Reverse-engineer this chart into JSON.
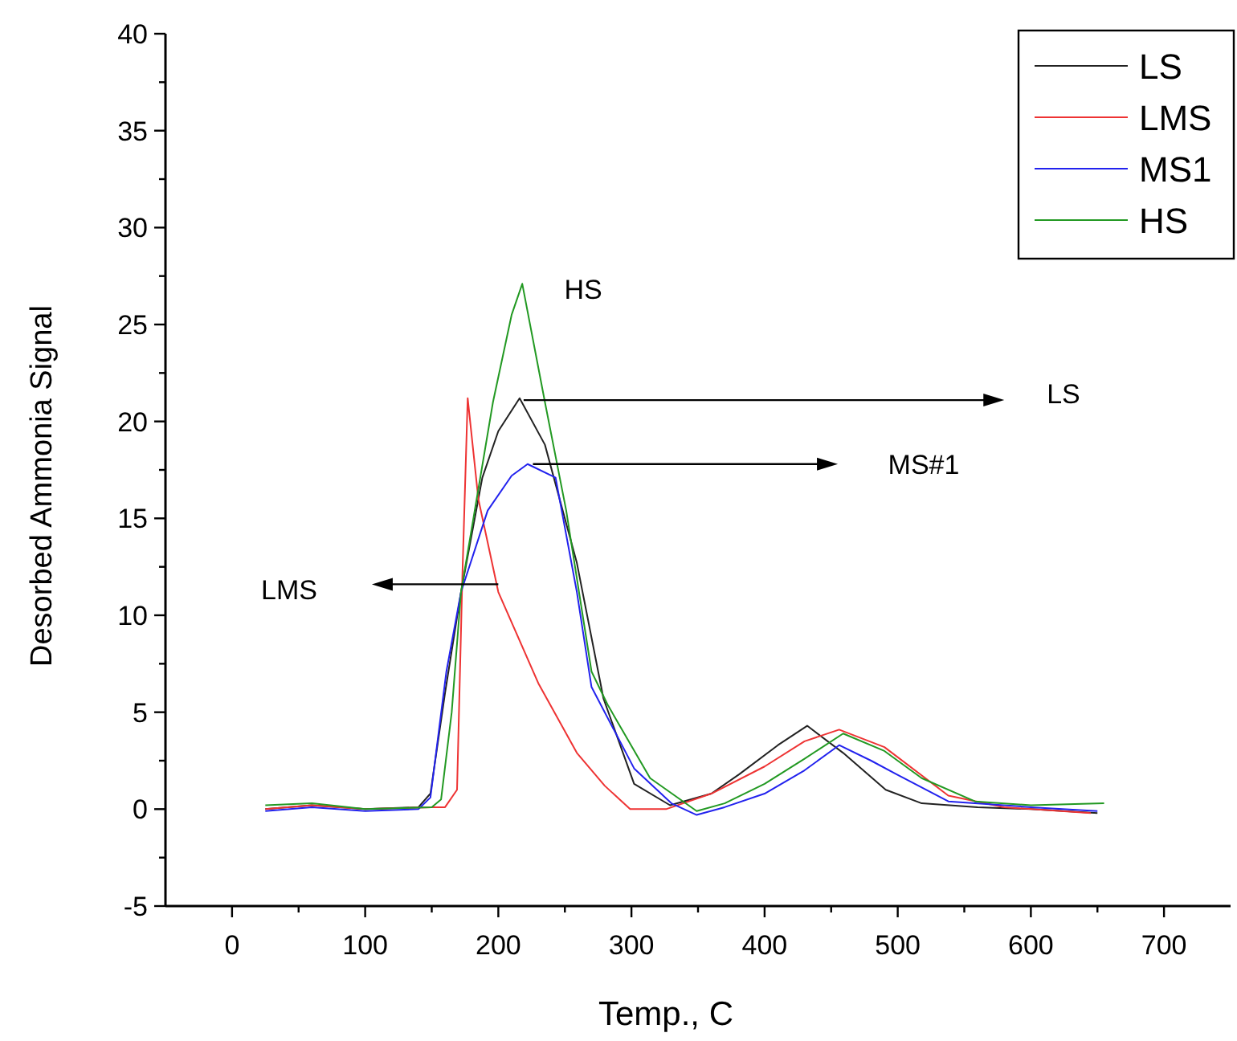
{
  "chart_data": {
    "type": "line",
    "xlabel": "Temp., C",
    "ylabel": "Desorbed Ammonia Signal",
    "xlim": [
      -50,
      750
    ],
    "ylim": [
      -5,
      40
    ],
    "xticks": [
      0,
      {
        "value": 50,
        "label": null
      },
      100,
      {
        "value": 150,
        "label": null
      },
      200,
      {
        "value": 250,
        "label": null
      },
      300,
      {
        "value": 350,
        "label": null
      },
      400,
      {
        "value": 450,
        "label": null
      },
      500,
      {
        "value": 550,
        "label": null
      },
      600,
      {
        "value": 650,
        "label": null
      },
      700
    ],
    "yticks": [
      -5,
      {
        "value": -2.5,
        "label": null
      },
      0,
      {
        "value": 2.5,
        "label": null
      },
      5,
      {
        "value": 7.5,
        "label": null
      },
      10,
      {
        "value": 12.5,
        "label": null
      },
      15,
      {
        "value": 17.5,
        "label": null
      },
      20,
      {
        "value": 22.5,
        "label": null
      },
      25,
      {
        "value": 27.5,
        "label": null
      },
      30,
      {
        "value": 32.5,
        "label": null
      },
      35,
      {
        "value": 37.5,
        "label": null
      },
      40
    ],
    "legend": "top right",
    "grid": false,
    "marker": "none",
    "line_style": "solid",
    "series": [
      {
        "name": "LS",
        "color": "#222222",
        "x": [
          25,
          60,
          100,
          140,
          149,
          160,
          172,
          188,
          200,
          216,
          235,
          259,
          279,
          302,
          329,
          360,
          381,
          410,
          432,
          459,
          491,
          518,
          560,
          600,
          650
        ],
        "values": [
          0,
          0.2,
          0,
          0.1,
          0.8,
          6,
          11.2,
          17.1,
          19.5,
          21.2,
          18.8,
          12.7,
          5.7,
          1.3,
          0.2,
          0.8,
          1.8,
          3.3,
          4.3,
          2.9,
          1.0,
          0.3,
          0.1,
          0,
          -0.2
        ]
      },
      {
        "name": "LMS",
        "color": "#ee3333",
        "x": [
          25,
          60,
          100,
          150,
          160,
          169,
          173,
          177,
          185,
          200,
          230,
          259,
          280,
          299,
          326,
          360,
          400,
          430,
          456,
          490,
          538,
          580,
          645
        ],
        "values": [
          0,
          0.2,
          0,
          0.1,
          0.1,
          1,
          12,
          21.2,
          16,
          11.2,
          6.5,
          2.9,
          1.2,
          0,
          0,
          0.8,
          2.2,
          3.5,
          4.1,
          3.2,
          0.7,
          0.1,
          -0.2
        ]
      },
      {
        "name": "MS1",
        "color": "#2222ee",
        "x": [
          25,
          60,
          100,
          140,
          149,
          161,
          172,
          192,
          210,
          222,
          243,
          259,
          270,
          302,
          330,
          349,
          370,
          400,
          430,
          456,
          480,
          499,
          538,
          600,
          650
        ],
        "values": [
          -0.1,
          0.1,
          -0.1,
          0,
          0.6,
          7.1,
          11.2,
          15.4,
          17.2,
          17.8,
          17.1,
          11.2,
          6.3,
          2.1,
          0.3,
          -0.3,
          0.1,
          0.8,
          2.0,
          3.3,
          2.5,
          1.8,
          0.4,
          0.1,
          -0.1
        ]
      },
      {
        "name": "HS",
        "color": "#229922",
        "x": [
          25,
          60,
          100,
          150,
          157,
          165,
          172,
          196,
          210,
          218,
          235,
          251,
          270,
          282,
          314,
          349,
          370,
          400,
          430,
          459,
          490,
          518,
          558,
          600,
          655
        ],
        "values": [
          0.2,
          0.3,
          0,
          0.1,
          0.5,
          5,
          11.2,
          21,
          25.5,
          27.1,
          21,
          15.4,
          7.1,
          5.4,
          1.6,
          -0.1,
          0.3,
          1.3,
          2.6,
          3.9,
          3.0,
          1.6,
          0.4,
          0.2,
          0.3
        ]
      }
    ],
    "annotations": [
      "HS",
      "LS",
      "MS#1",
      "LMS"
    ]
  }
}
